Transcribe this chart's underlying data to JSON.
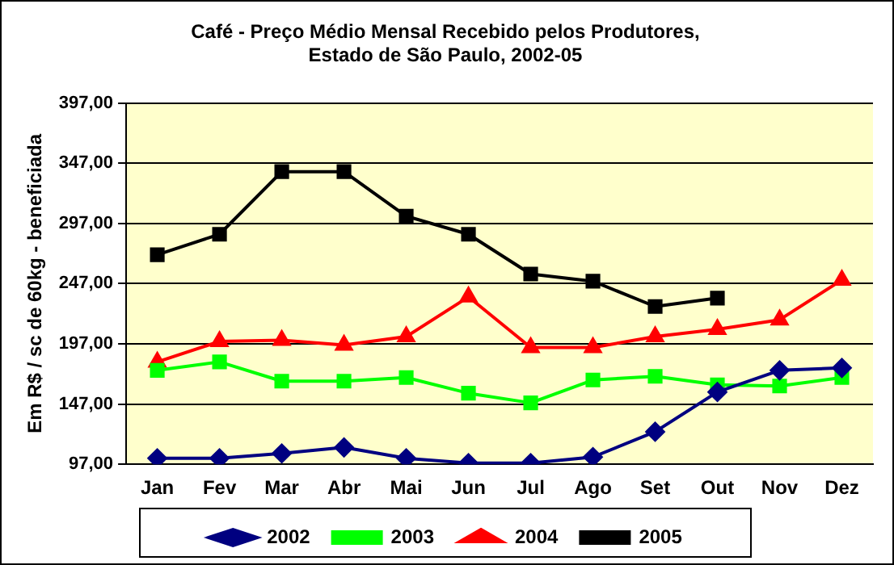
{
  "chart_data": {
    "type": "line",
    "title": "Café - Preço Médio Mensal Recebido pelos Produtores,\nEstado de São Paulo, 2002-05",
    "ylabel": "Em R$ / sc de 60kg - beneficiada",
    "categories": [
      "Jan",
      "Fev",
      "Mar",
      "Abr",
      "Mai",
      "Jun",
      "Jul",
      "Ago",
      "Set",
      "Out",
      "Nov",
      "Dez"
    ],
    "series": [
      {
        "name": "2002",
        "color": "#000080",
        "marker": "diamond",
        "values": [
          102,
          102,
          106,
          111,
          102,
          98,
          98,
          103,
          124,
          157,
          175,
          177
        ]
      },
      {
        "name": "2003",
        "color": "#00ff00",
        "marker": "square",
        "values": [
          175,
          182,
          166,
          166,
          169,
          156,
          148,
          167,
          170,
          163,
          162,
          169
        ]
      },
      {
        "name": "2004",
        "color": "#ff0000",
        "marker": "triangle",
        "values": [
          182,
          199,
          200,
          196,
          203,
          236,
          194,
          194,
          203,
          209,
          217,
          250
        ]
      },
      {
        "name": "2005",
        "color": "#000000",
        "marker": "square",
        "values": [
          271,
          288,
          340,
          340,
          303,
          288,
          255,
          249,
          228,
          235,
          null,
          null
        ]
      }
    ],
    "ylim": [
      97,
      397
    ],
    "yticks": [
      {
        "value": 97,
        "label": "97,00"
      },
      {
        "value": 147,
        "label": "147,00"
      },
      {
        "value": 197,
        "label": "197,00"
      },
      {
        "value": 247,
        "label": "247,00"
      },
      {
        "value": 297,
        "label": "297,00"
      },
      {
        "value": 347,
        "label": "347,00"
      },
      {
        "value": 397,
        "label": "397,00"
      }
    ],
    "grid": "y",
    "legend": "bottom",
    "line_style": "solid"
  }
}
